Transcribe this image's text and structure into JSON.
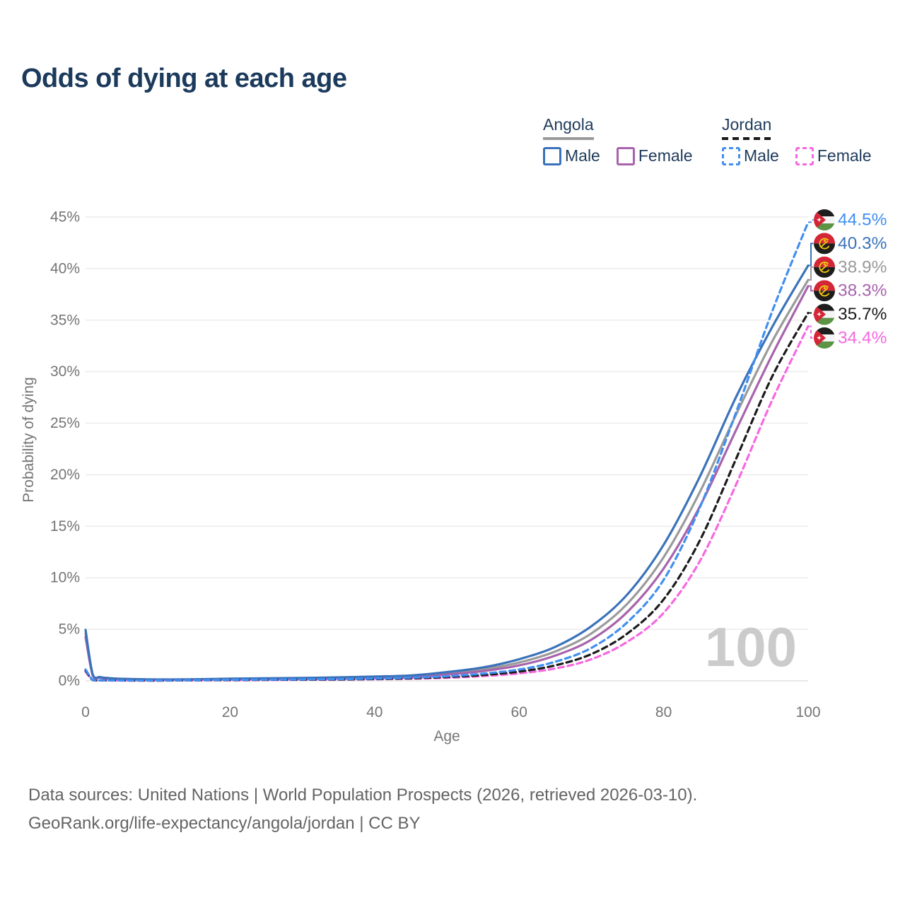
{
  "title": "Odds of dying at each age",
  "age_indicator": "100",
  "legend": {
    "groups": [
      {
        "name": "Angola",
        "line_style": "solid",
        "sample_color": "#9a9a9a",
        "items": [
          {
            "label": "Male",
            "color": "#3a72b9"
          },
          {
            "label": "Female",
            "color": "#a763ad"
          }
        ]
      },
      {
        "name": "Jordan",
        "line_style": "dashed",
        "sample_color": "#1a1a1a",
        "items": [
          {
            "label": "Male",
            "color": "#418ff0"
          },
          {
            "label": "Female",
            "color": "#f768e0"
          }
        ]
      }
    ]
  },
  "footer": {
    "line1": "Data sources: United Nations | World Population Prospects (2026, retrieved 2026-03-10).",
    "line2": "GeoRank.org/life-expectancy/angola/jordan | CC BY"
  },
  "chart_data": {
    "type": "line",
    "title": "Odds of dying at each age",
    "xlabel": "Age",
    "ylabel": "Probability of dying",
    "xlim": [
      0,
      100
    ],
    "ylim": [
      0,
      45
    ],
    "x_ticks": [
      0,
      20,
      40,
      60,
      80,
      100
    ],
    "y_ticks": [
      0,
      5,
      10,
      15,
      20,
      25,
      30,
      35,
      40,
      45
    ],
    "y_tick_suffix": "%",
    "grid": "horizontal",
    "ages": [
      0,
      1,
      2,
      3,
      5,
      10,
      15,
      20,
      25,
      30,
      35,
      40,
      45,
      50,
      55,
      60,
      65,
      70,
      75,
      80,
      85,
      90,
      95,
      100
    ],
    "series": [
      {
        "id": "angola_both",
        "name": "Angola (both sexes)",
        "country": "Angola",
        "sex": "Both",
        "flag": "angola",
        "color": "#9a9a9a",
        "dash": false,
        "end_label": "38.9%",
        "values": [
          4.6,
          0.57,
          0.35,
          0.26,
          0.18,
          0.13,
          0.14,
          0.18,
          0.21,
          0.24,
          0.28,
          0.35,
          0.44,
          0.73,
          1.12,
          1.78,
          2.85,
          4.6,
          7.5,
          12.0,
          18.3,
          25.8,
          32.9,
          38.9
        ]
      },
      {
        "id": "angola_female",
        "name": "Angola Female",
        "country": "Angola",
        "sex": "Female",
        "flag": "angola",
        "color": "#a763ad",
        "dash": false,
        "end_label": "38.3%",
        "values": [
          4.25,
          0.52,
          0.32,
          0.24,
          0.17,
          0.12,
          0.13,
          0.15,
          0.17,
          0.2,
          0.24,
          0.29,
          0.37,
          0.62,
          0.95,
          1.5,
          2.45,
          4.0,
          6.7,
          10.9,
          16.9,
          24.3,
          31.6,
          38.3
        ]
      },
      {
        "id": "angola_male",
        "name": "Angola Male",
        "country": "Angola",
        "sex": "Male",
        "flag": "angola",
        "color": "#3a72b9",
        "dash": false,
        "end_label": "40.3%",
        "values": [
          4.95,
          0.62,
          0.38,
          0.28,
          0.2,
          0.14,
          0.16,
          0.21,
          0.25,
          0.29,
          0.34,
          0.42,
          0.53,
          0.85,
          1.3,
          2.1,
          3.3,
          5.3,
          8.4,
          13.2,
          19.8,
          27.5,
          34.3,
          40.3
        ]
      },
      {
        "id": "jordan_female",
        "name": "Jordan Female",
        "country": "Jordan",
        "sex": "Female",
        "flag": "jordan",
        "color": "#f768e0",
        "dash": true,
        "end_label": "34.4%",
        "values": [
          0.9,
          0.08,
          0.05,
          0.04,
          0.03,
          0.03,
          0.05,
          0.06,
          0.08,
          0.1,
          0.12,
          0.16,
          0.21,
          0.3,
          0.46,
          0.73,
          1.2,
          2.1,
          3.8,
          6.6,
          11.6,
          19.0,
          27.2,
          34.4
        ]
      },
      {
        "id": "jordan_both",
        "name": "Jordan (both sexes)",
        "country": "Jordan",
        "sex": "Both",
        "flag": "jordan",
        "color": "#1b1b1b",
        "dash": true,
        "end_label": "35.7%",
        "values": [
          1.0,
          0.09,
          0.06,
          0.05,
          0.04,
          0.03,
          0.06,
          0.08,
          0.1,
          0.12,
          0.14,
          0.18,
          0.25,
          0.37,
          0.57,
          0.9,
          1.5,
          2.6,
          4.6,
          7.9,
          13.6,
          21.5,
          29.5,
          35.7
        ]
      },
      {
        "id": "jordan_male",
        "name": "Jordan Male",
        "country": "Jordan",
        "sex": "Male",
        "flag": "jordan",
        "color": "#418ff0",
        "dash": true,
        "end_label": "44.5%",
        "values": [
          1.1,
          0.1,
          0.06,
          0.05,
          0.04,
          0.04,
          0.07,
          0.1,
          0.12,
          0.14,
          0.17,
          0.22,
          0.31,
          0.45,
          0.7,
          1.1,
          1.85,
          3.2,
          5.7,
          9.8,
          16.8,
          26.0,
          35.8,
          44.5
        ]
      }
    ]
  }
}
